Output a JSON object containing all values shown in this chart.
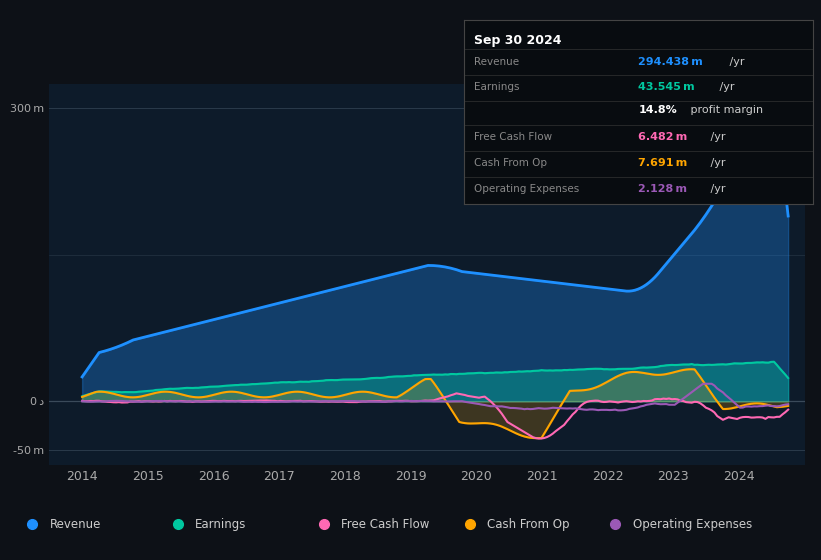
{
  "bg_color": "#0d1117",
  "plot_bg_color": "#0d1b2a",
  "revenue_color": "#1e90ff",
  "earnings_color": "#00c8a0",
  "fcf_color": "#ff69b4",
  "cashfromop_color": "#ffa500",
  "opex_color": "#9b59b6",
  "x_tick_labels": [
    "2014",
    "2015",
    "2016",
    "2017",
    "2018",
    "2019",
    "2020",
    "2021",
    "2022",
    "2023",
    "2024"
  ],
  "info_title": "Sep 30 2024",
  "info_rows": [
    {
      "label": "Revenue",
      "value": "294.438 m /yr",
      "color": "#1e90ff"
    },
    {
      "label": "Earnings",
      "value": "43.545 m /yr",
      "color": "#00c8a0"
    },
    {
      "label": "",
      "value": "14.8% profit margin",
      "color": "#ffffff"
    },
    {
      "label": "Free Cash Flow",
      "value": "6.482 m /yr",
      "color": "#ff69b4"
    },
    {
      "label": "Cash From Op",
      "value": "7.691 m /yr",
      "color": "#ffa500"
    },
    {
      "label": "Operating Expenses",
      "value": "2.128 m /yr",
      "color": "#9b59b6"
    }
  ],
  "legend_items": [
    {
      "label": "Revenue",
      "color": "#1e90ff"
    },
    {
      "label": "Earnings",
      "color": "#00c8a0"
    },
    {
      "label": "Free Cash Flow",
      "color": "#ff69b4"
    },
    {
      "label": "Cash From Op",
      "color": "#ffa500"
    },
    {
      "label": "Operating Expenses",
      "color": "#9b59b6"
    }
  ]
}
